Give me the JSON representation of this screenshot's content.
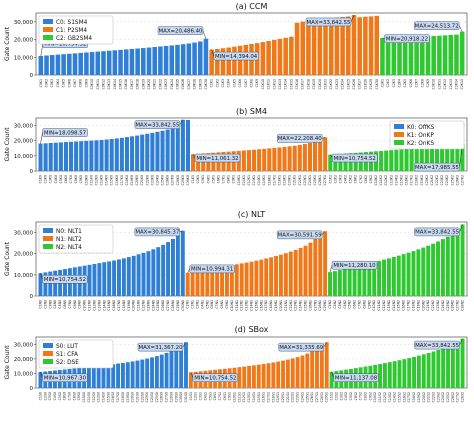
{
  "figure": {
    "colors": {
      "blue": "#2f7fd6",
      "orange": "#f07818",
      "green": "#2ec830",
      "annot_fill": "#c9daf0",
      "annot_edge": "#3a5a86"
    }
  },
  "chart_data": [
    {
      "type": "bar",
      "title": "(a) CCM",
      "ylabel": "Gate Count",
      "ylim": [
        0,
        35000
      ],
      "yticks": [
        0,
        10000,
        20000,
        30000
      ],
      "ytick_labels": [
        "0",
        "10,000",
        "20,000",
        "30,000"
      ],
      "grid": true,
      "legend_placement": "top-left",
      "groups": [
        {
          "name": "C0: S1SM4",
          "color": "#2f7fd6",
          "tick_prefix": "C0K",
          "tick_suffix": "",
          "values": [
            10754.52,
            11010,
            11260,
            11500,
            11740,
            11980,
            12220,
            12460,
            12700,
            12950,
            13200,
            13450,
            13700,
            13950,
            14200,
            14450,
            14700,
            14950,
            15200,
            15500,
            15800,
            16100,
            16400,
            16700,
            17000,
            17400,
            17800,
            18300,
            18900,
            20486.4
          ],
          "max_label": "MAX=20,486.40",
          "min_label": "MIN=10,754.52"
        },
        {
          "name": "C1: P2SM4",
          "color": "#f07818",
          "tick_prefix": "C1K",
          "tick_suffix": "",
          "values": [
            14394.04,
            14700,
            15100,
            15500,
            16000,
            16500,
            17000,
            17500,
            18000,
            18600,
            19200,
            19800,
            20400,
            21000,
            21600,
            29500,
            30200,
            30700,
            31100,
            31500,
            31800,
            32100,
            32400,
            32700,
            33000,
            33842.55,
            32600,
            32900,
            33100,
            33400
          ],
          "max_label": "MAX=33,842.55",
          "min_label": "MIN=14,394.04"
        },
        {
          "name": "C2: GB2SM4",
          "color": "#2ec830",
          "tick_prefix": "C2K",
          "tick_suffix": "",
          "values": [
            20918.22,
            21000,
            21100,
            21200,
            21300,
            21400,
            21550,
            21700,
            21850,
            22000,
            22200,
            22400,
            22600,
            22800,
            24513.72
          ],
          "max_label": "MAX=24,513.72",
          "min_label": "MIN=20,918.22"
        }
      ]
    },
    {
      "type": "bar",
      "title": "(b) SM4",
      "ylabel": "Gate Count",
      "ylim": [
        0,
        35000
      ],
      "yticks": [
        0,
        10000,
        20000,
        30000
      ],
      "ytick_labels": [
        "0",
        "10,000",
        "20,000",
        "30,000"
      ],
      "grid": true,
      "legend_placement": "top-right",
      "groups": [
        {
          "name": "K0: OffKS",
          "color": "#2f7fd6",
          "tick_prefix": "C",
          "tick_suffix": "K0",
          "values": [
            18098.57,
            18300,
            18500,
            18700,
            18900,
            19100,
            19300,
            19500,
            19700,
            19900,
            20100,
            20300,
            20500,
            20800,
            21100,
            21500,
            21900,
            22400,
            22900,
            23400,
            24000,
            24600,
            25200,
            25900,
            26600,
            27400,
            28300,
            29300,
            33842.55,
            33700
          ],
          "max_label": "MAX=33,842.55",
          "min_label": "MIN=18,098.57"
        },
        {
          "name": "K1: OnKP",
          "color": "#f07818",
          "tick_prefix": "C",
          "tick_suffix": "K1",
          "values": [
            11061.32,
            11300,
            11550,
            11800,
            12050,
            12300,
            12550,
            12800,
            13050,
            13300,
            13550,
            13800,
            14050,
            14350,
            14650,
            14950,
            15250,
            15550,
            15900,
            16300,
            16700,
            17200,
            17800,
            18500,
            19300,
            20300,
            22208.4
          ],
          "max_label": "MAX=22,208.40",
          "min_label": "MIN=11,061.32"
        },
        {
          "name": "K2: OnKS",
          "color": "#2ec830",
          "tick_prefix": "C",
          "tick_suffix": "K2",
          "values": [
            10754.52,
            11000,
            11250,
            11500,
            11750,
            12000,
            12250,
            12500,
            12750,
            13000,
            13250,
            13500,
            13750,
            14000,
            14250,
            14500,
            14750,
            15000,
            15300,
            15600,
            15900,
            16200,
            16500,
            16800,
            17100,
            17400,
            17985.55
          ],
          "max_label": "MAX=17,985.55",
          "min_label": "MIN=10,754.52"
        }
      ]
    },
    {
      "type": "bar",
      "title": "(c) NLT",
      "ylabel": "Gate Count",
      "ylim": [
        0,
        35000
      ],
      "yticks": [
        0,
        10000,
        20000,
        30000
      ],
      "ytick_labels": [
        "0",
        "10,000",
        "20,000",
        "30,000"
      ],
      "grid": true,
      "legend_placement": "top-left",
      "groups": [
        {
          "name": "N0: NLT1",
          "color": "#2f7fd6",
          "tick_prefix": "C",
          "tick_suffix": "N0",
          "values": [
            10754.52,
            11150,
            11550,
            11950,
            12350,
            12750,
            13150,
            13550,
            13950,
            14350,
            14750,
            15150,
            15550,
            15950,
            16350,
            16800,
            17300,
            17800,
            18400,
            19000,
            19700,
            20400,
            21200,
            22100,
            23100,
            24200,
            25500,
            27000,
            29000,
            30845.37
          ],
          "max_label": "MAX=30,845.37",
          "min_label": "MIN=10,754.52"
        },
        {
          "name": "N1: NLT2",
          "color": "#f07818",
          "tick_prefix": "C",
          "tick_suffix": "N1",
          "values": [
            10994.31,
            11400,
            11800,
            12200,
            12600,
            13000,
            13400,
            13800,
            14200,
            14600,
            15000,
            15400,
            15800,
            16250,
            16700,
            17200,
            17750,
            18300,
            18900,
            19550,
            20250,
            21000,
            21800,
            22700,
            23800,
            25200,
            27000,
            29500,
            30591.59
          ],
          "max_label": "MAX=30,591.59",
          "min_label": "MIN=10,994.31"
        },
        {
          "name": "N2: NLT4",
          "color": "#2ec830",
          "tick_prefix": "C",
          "tick_suffix": "N2",
          "values": [
            11280.1,
            11750,
            12250,
            12750,
            13250,
            13800,
            14350,
            14900,
            15450,
            16000,
            16600,
            17200,
            17800,
            18450,
            19100,
            19800,
            20500,
            21250,
            22050,
            22900,
            23800,
            24750,
            25800,
            26900,
            28000,
            29200,
            30500,
            33842.55
          ],
          "max_label": "MAX=33,842.55",
          "min_label": "MIN=11,280.10"
        }
      ]
    },
    {
      "type": "bar",
      "title": "(d) SBox",
      "ylabel": "Gate Count",
      "ylim": [
        0,
        35000
      ],
      "yticks": [
        0,
        10000,
        20000,
        30000
      ],
      "ytick_labels": [
        "0",
        "10,000",
        "20,000",
        "30,000"
      ],
      "grid": true,
      "legend_placement": "top-left",
      "groups": [
        {
          "name": "S0: LUT",
          "color": "#2f7fd6",
          "tick_prefix": "C",
          "tick_suffix": "S0",
          "values": [
            10967.3,
            11300,
            11650,
            12000,
            12350,
            12700,
            13050,
            13400,
            13750,
            14100,
            14450,
            14800,
            15150,
            15500,
            15900,
            16300,
            16750,
            17200,
            17700,
            18250,
            18850,
            19500,
            20200,
            21000,
            21900,
            22900,
            24100,
            25500,
            27500,
            30200,
            31367.2
          ],
          "max_label": "MAX=31,367.20",
          "min_label": "MIN=10,967.30"
        },
        {
          "name": "S1: CFA",
          "color": "#f07818",
          "tick_prefix": "C",
          "tick_suffix": "S1",
          "values": [
            10754.52,
            11100,
            11450,
            11800,
            12150,
            12500,
            12850,
            13200,
            13550,
            13900,
            14300,
            14700,
            15100,
            15550,
            16000,
            16500,
            17000,
            17550,
            18150,
            18800,
            19500,
            20300,
            21200,
            22300,
            23600,
            25200,
            27500,
            30000,
            31335.69
          ],
          "max_label": "MAX=31,335.69",
          "min_label": "MIN=10,754.52"
        },
        {
          "name": "S2: DSE",
          "color": "#2ec830",
          "tick_prefix": "C",
          "tick_suffix": "S2",
          "values": [
            11137.08,
            11600,
            12100,
            12600,
            13100,
            13650,
            14200,
            14750,
            15300,
            15900,
            16500,
            17100,
            17750,
            18400,
            19100,
            19800,
            20550,
            21350,
            22200,
            23100,
            24050,
            25050,
            26100,
            27200,
            28400,
            29700,
            31000,
            33842.55
          ],
          "max_label": "MAX=33,842.55",
          "min_label": "MIN=11,137.08"
        }
      ]
    }
  ]
}
